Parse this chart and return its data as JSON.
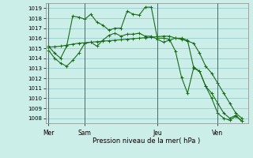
{
  "bg_color": "#cceee8",
  "grid_color": "#99cccc",
  "line_color": "#1a6b1a",
  "xlabel": "Pression niveau de la mer( hPa )",
  "ylim": [
    1007.5,
    1019.5
  ],
  "yticks": [
    1008,
    1009,
    1010,
    1011,
    1012,
    1013,
    1014,
    1015,
    1016,
    1017,
    1018,
    1019
  ],
  "day_labels": [
    "Mer",
    "Sam",
    "Jeu",
    "Ven"
  ],
  "day_positions": [
    0,
    6,
    18,
    28
  ],
  "xlim": [
    -0.5,
    33
  ],
  "series1_x": [
    0,
    1,
    2,
    3,
    4,
    5,
    6,
    7,
    8,
    9,
    10,
    11,
    12,
    13,
    14,
    15,
    16,
    17,
    18,
    19,
    20,
    21,
    22,
    23,
    24,
    25,
    26,
    27,
    28,
    29,
    30,
    31,
    32
  ],
  "series1_y": [
    1015.2,
    1014.5,
    1014.0,
    1015.2,
    1018.2,
    1018.1,
    1017.9,
    1018.4,
    1017.6,
    1017.3,
    1016.8,
    1017.0,
    1017.0,
    1018.7,
    1018.4,
    1018.3,
    1019.1,
    1019.1,
    1016.0,
    1016.0,
    1015.9,
    1014.7,
    1012.1,
    1010.5,
    1013.0,
    1012.7,
    1011.2,
    1010.0,
    1008.5,
    1008.0,
    1007.8,
    1008.2,
    1007.7
  ],
  "series2_x": [
    0,
    1,
    2,
    3,
    4,
    5,
    6,
    7,
    8,
    9,
    10,
    11,
    12,
    13,
    14,
    15,
    16,
    17,
    18,
    19,
    20,
    21,
    22,
    23,
    24,
    25,
    26,
    27,
    28,
    29,
    30,
    31,
    32
  ],
  "series2_y": [
    1015.1,
    1015.15,
    1015.2,
    1015.3,
    1015.4,
    1015.5,
    1015.55,
    1015.6,
    1015.65,
    1015.7,
    1015.75,
    1015.8,
    1015.85,
    1015.9,
    1015.95,
    1016.0,
    1016.05,
    1016.1,
    1016.15,
    1016.2,
    1016.2,
    1016.0,
    1015.9,
    1015.7,
    1015.5,
    1014.5,
    1013.2,
    1012.5,
    1011.5,
    1010.5,
    1009.5,
    1008.5,
    1008.0
  ],
  "series3_x": [
    0,
    1,
    2,
    3,
    4,
    5,
    6,
    7,
    8,
    9,
    10,
    11,
    12,
    13,
    14,
    15,
    16,
    17,
    18,
    19,
    20,
    21,
    22,
    23,
    24,
    25,
    26,
    27,
    28,
    29,
    30,
    31,
    32
  ],
  "series3_y": [
    1014.8,
    1014.0,
    1013.5,
    1013.2,
    1013.8,
    1014.5,
    1015.5,
    1015.6,
    1015.2,
    1015.8,
    1016.3,
    1016.5,
    1016.2,
    1016.4,
    1016.4,
    1016.5,
    1016.2,
    1016.2,
    1015.9,
    1015.6,
    1015.8,
    1016.0,
    1016.0,
    1015.8,
    1013.1,
    1012.7,
    1011.2,
    1010.5,
    1009.5,
    1008.5,
    1008.0,
    1008.3,
    1007.7
  ]
}
